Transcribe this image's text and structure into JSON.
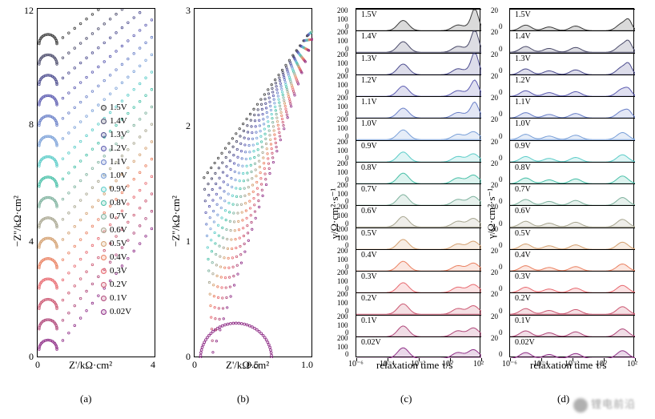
{
  "figure": {
    "voltages": [
      "1.5V",
      "1.4V",
      "1.3V",
      "1.2V",
      "1.1V",
      "1.0V",
      "0.9V",
      "0.8V",
      "0.7V",
      "0.6V",
      "0.5V",
      "0.4V",
      "0.3V",
      "0.2V",
      "0.1V",
      "0.02V"
    ],
    "series_colors": [
      "#3a3a3a",
      "#4a4a6a",
      "#4d4d8f",
      "#5a5ab0",
      "#6a80c8",
      "#7aa0d8",
      "#5accc8",
      "#48c0a8",
      "#7eb29e",
      "#a8a690",
      "#d4a070",
      "#ea8060",
      "#e86a70",
      "#cc5872",
      "#b0487a",
      "#903088"
    ],
    "background_color": "#ffffff",
    "border_color": "#000000",
    "panel_a": {
      "type": "scatter-nyquist",
      "caption": "(a)",
      "xlabel": "Z'/kΩ·cm²",
      "ylabel": "−Z''/kΩ·cm²",
      "xlim": [
        0,
        4
      ],
      "ylim": [
        0,
        12
      ],
      "xticks": [
        0,
        4
      ],
      "yticks": [
        0,
        4,
        8,
        12
      ],
      "curves_per_series": "semicircle + tail, stacked vertically ~0.7 kΩ offset",
      "semicircle_radius": 0.3
    },
    "panel_b": {
      "type": "scatter-nyquist-zoom",
      "caption": "(b)",
      "xlabel": "Z'/kΩ·cm²",
      "ylabel": "−Z''/kΩ·cm²",
      "xlim": [
        0,
        1.0
      ],
      "ylim": [
        0,
        3
      ],
      "xticks": [
        0,
        0.5,
        1.0
      ],
      "yticks": [
        0,
        1,
        2,
        3
      ]
    },
    "panel_c": {
      "type": "drt-stacked",
      "caption": "(c)",
      "xlabel": "relaxation time τ/s",
      "ylabel": "γ/Ω·cm²·s⁻¹",
      "xlog": true,
      "xlim": [
        1e-06,
        100.0
      ],
      "xticks": [
        "10⁻⁶",
        "10⁻⁴",
        "10⁻²",
        "10⁰",
        "10²"
      ],
      "ylim_each": [
        0,
        200
      ],
      "yticks_each": [
        0,
        100,
        200
      ],
      "peak_positions_log10": [
        -3,
        0.5,
        1.5
      ]
    },
    "panel_d": {
      "type": "drt-stacked",
      "caption": "(d)",
      "xlabel": "relaxation time τ/s",
      "ylabel": "γ/Ω·cm²·s⁻¹",
      "xlog": true,
      "xlim": [
        1e-06,
        100.0
      ],
      "xticks": [
        "10⁻⁶",
        "10⁻⁴",
        "10⁻²",
        "10⁰",
        "10²"
      ],
      "ylim_each": [
        0,
        20
      ],
      "yticks_each": [
        0,
        20
      ],
      "peak_positions_log10": [
        -5,
        -3.5,
        -1.8,
        1.2
      ]
    },
    "watermark_text": "锂电前沿"
  }
}
